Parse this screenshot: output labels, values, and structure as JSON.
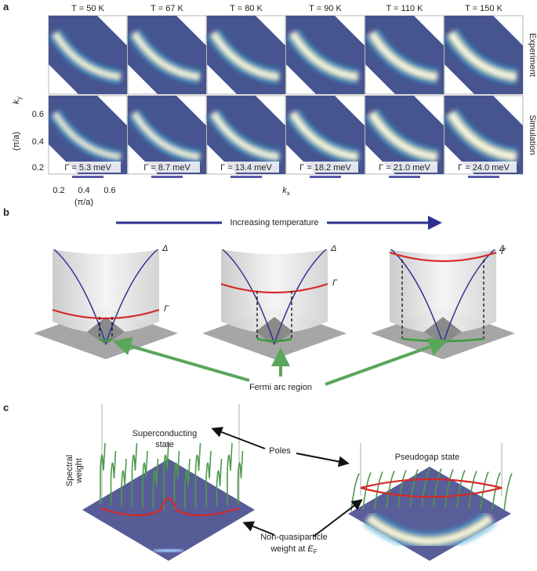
{
  "panel_a": {
    "label": "a",
    "temperatures": [
      "T = 50 K",
      "T = 67 K",
      "T = 80 K",
      "T = 90 K",
      "T = 110 K",
      "T = 150 K"
    ],
    "gammas": [
      "Γ = 5.3 meV",
      "Γ = 8.7 meV",
      "Γ = 13.4 meV",
      "Γ = 18.2 meV",
      "Γ = 21.0 meV",
      "Γ = 24.0 meV"
    ],
    "row_labels": [
      "Experiment",
      "Simulation"
    ],
    "y_axis": {
      "symbol": "k",
      "subscript": "y",
      "unit": "(π/a)",
      "ticks": [
        "0.6",
        "0.4",
        "0.2"
      ]
    },
    "x_axis": {
      "symbol": "k",
      "subscript": "x",
      "unit": "(π/a)",
      "ticks": [
        "0.2",
        "0.4",
        "0.6"
      ]
    }
  },
  "panel_b": {
    "label": "b",
    "arrow_text": "Increasing temperature",
    "delta_symbol": "Δ",
    "gamma_symbol": "Γ",
    "fermi_arc": "Fermi arc region"
  },
  "panel_c": {
    "label": "c",
    "superconducting": [
      "Superconducting",
      "state"
    ],
    "spectral_weight": [
      "Spectral",
      "weight"
    ],
    "poles": "Poles",
    "pseudogap": "Pseudogap state",
    "non_qp": {
      "lines": [
        "Non-quasiparticle",
        "weight at "
      ],
      "symbol": "E",
      "subscript": "F"
    }
  }
}
